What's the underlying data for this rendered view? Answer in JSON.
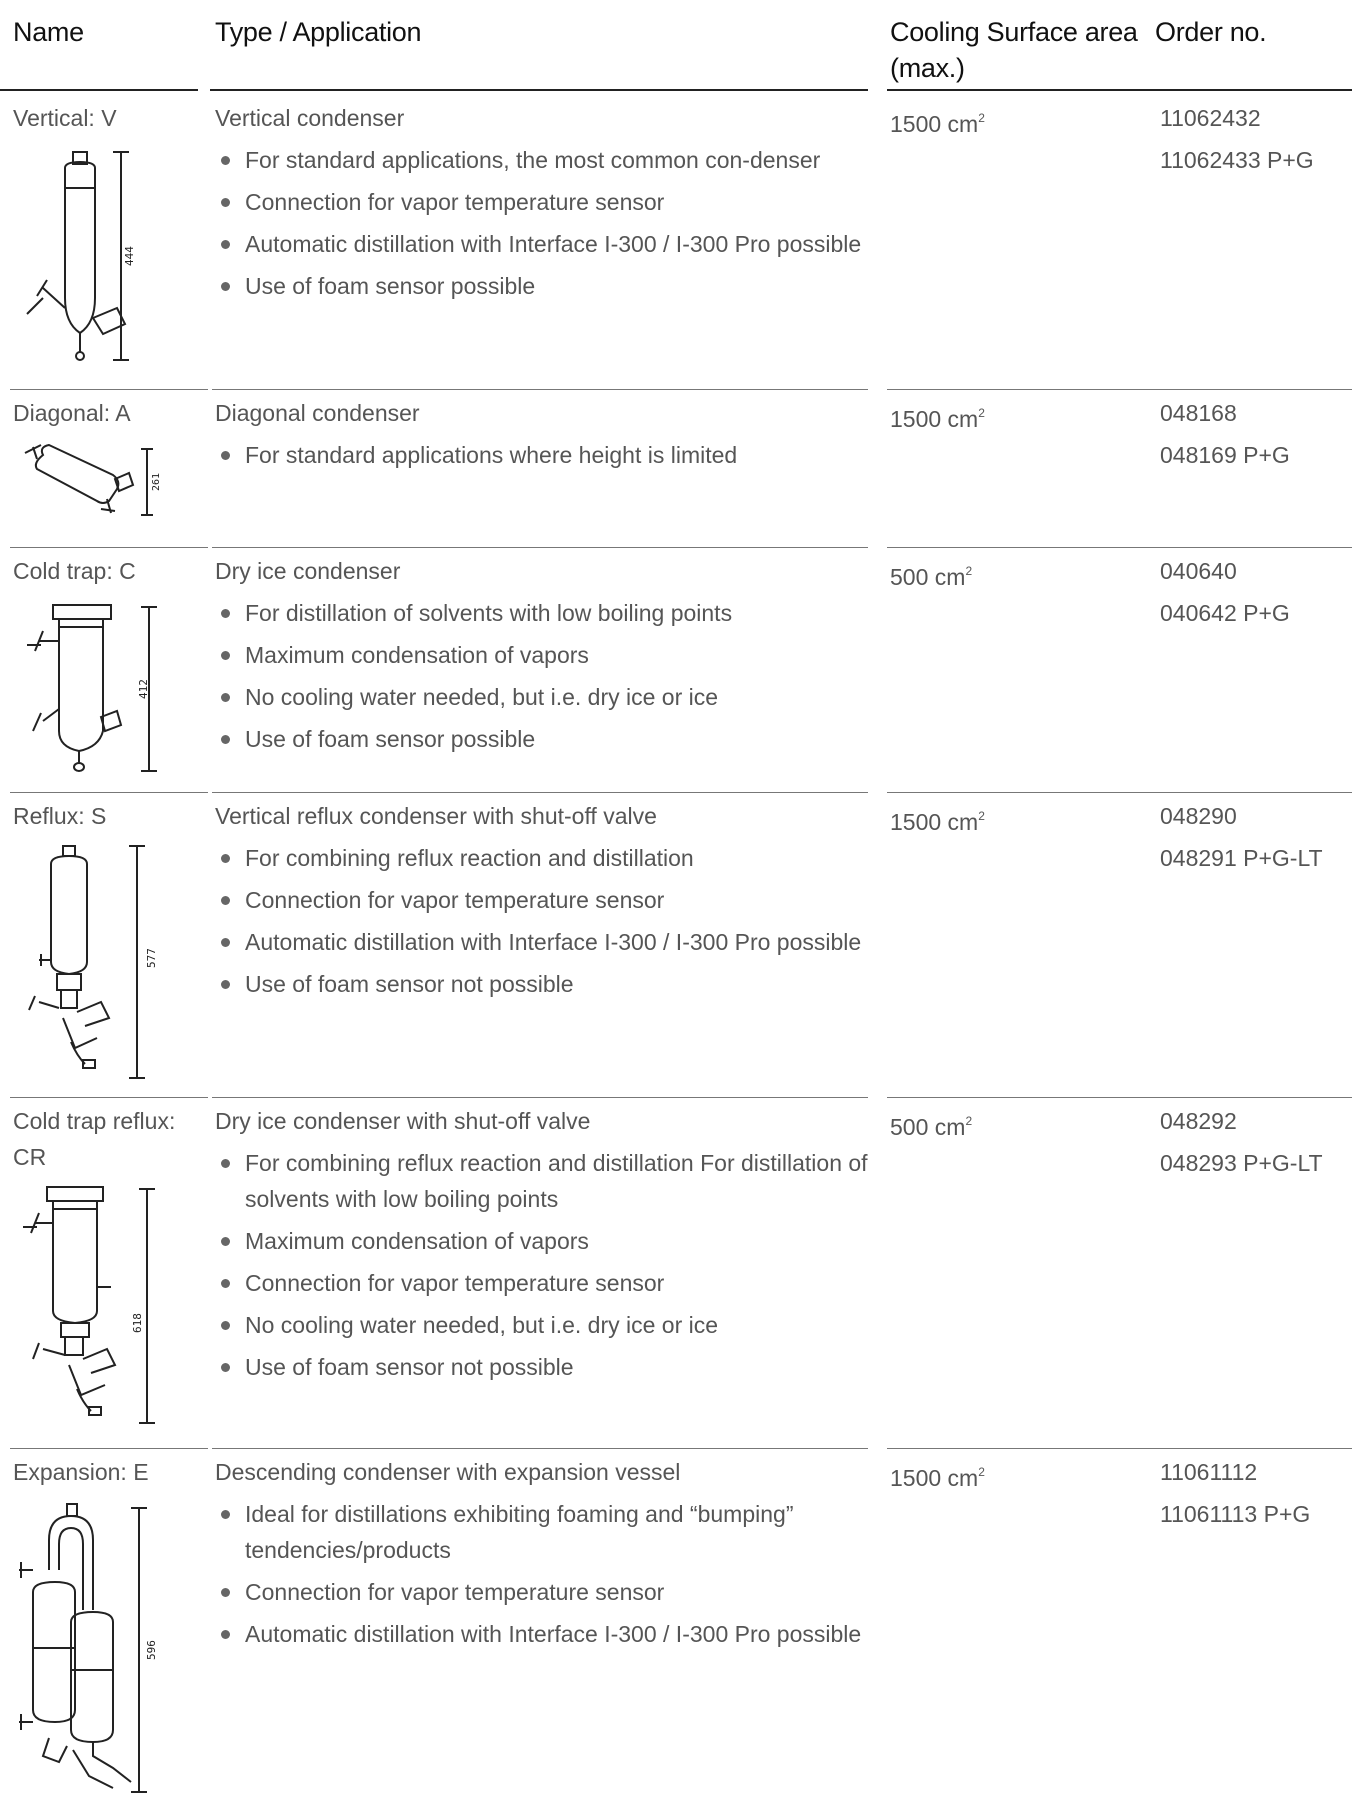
{
  "header": {
    "name": "Name",
    "type": "Type / Application",
    "cooling": "Cooling Surface area (max.)",
    "order": "Order no."
  },
  "rows": [
    {
      "name": "Vertical: V",
      "title": "Vertical condenser",
      "bullets": [
        "For standard applications, the most common con-denser",
        "Connection for vapor temperature sensor",
        "Automatic distillation with Interface I-300 / I-300 Pro possible",
        "Use of foam sensor possible"
      ],
      "cooling_value": "1500 cm",
      "cooling_exp": "2",
      "orders": [
        "11062432",
        "11062433 P+G"
      ],
      "dimension": "444",
      "drawing_icon": "vertical-condenser-icon"
    },
    {
      "name": "Diagonal: A",
      "title": "Diagonal condenser",
      "bullets": [
        "For standard applications where height is limited"
      ],
      "cooling_value": "1500 cm",
      "cooling_exp": "2",
      "orders": [
        "048168",
        "048169 P+G"
      ],
      "dimension": "261",
      "drawing_icon": "diagonal-condenser-icon"
    },
    {
      "name": "Cold trap: C",
      "title": "Dry ice condenser",
      "bullets": [
        "For distillation of solvents with low boiling points",
        "Maximum condensation of vapors",
        "No cooling water needed, but i.e. dry ice or ice",
        "Use of foam sensor possible"
      ],
      "cooling_value": "500 cm",
      "cooling_exp": "2",
      "orders": [
        "040640",
        "040642 P+G"
      ],
      "dimension": "412",
      "drawing_icon": "cold-trap-icon"
    },
    {
      "name": "Reflux: S",
      "title": "Vertical reflux condenser with shut-off valve",
      "bullets": [
        "For combining reflux reaction and distillation",
        "Connection for vapor temperature sensor",
        "Automatic distillation with Interface I-300 / I-300 Pro possible",
        "Use of foam sensor not possible"
      ],
      "cooling_value": "1500 cm",
      "cooling_exp": "2",
      "orders": [
        "048290",
        "048291 P+G-LT"
      ],
      "dimension": "577",
      "drawing_icon": "reflux-condenser-icon"
    },
    {
      "name": "Cold trap reflux: CR",
      "title": "Dry ice condenser with shut-off valve",
      "bullets": [
        "For combining reflux reaction and distillation For distillation of solvents with low boiling points",
        "Maximum condensation of vapors",
        "Connection for vapor temperature sensor",
        "No cooling water needed, but i.e. dry ice or ice",
        "Use of foam sensor not possible"
      ],
      "cooling_value": "500 cm",
      "cooling_exp": "2",
      "orders": [
        "048292",
        "048293 P+G-LT"
      ],
      "dimension": "618",
      "drawing_icon": "cold-trap-reflux-icon"
    },
    {
      "name": "Expansion: E",
      "title": "Descending condenser with expansion vessel",
      "bullets": [
        "Ideal for distillations exhibiting foaming and “bumping” tendencies/products",
        "Connection for vapor temperature sensor",
        "Automatic distillation with Interface I-300 / I-300 Pro possible"
      ],
      "cooling_value": "1500 cm",
      "cooling_exp": "2",
      "orders": [
        "11061112",
        "11061113 P+G"
      ],
      "dimension": "596",
      "drawing_icon": "expansion-condenser-icon"
    }
  ]
}
